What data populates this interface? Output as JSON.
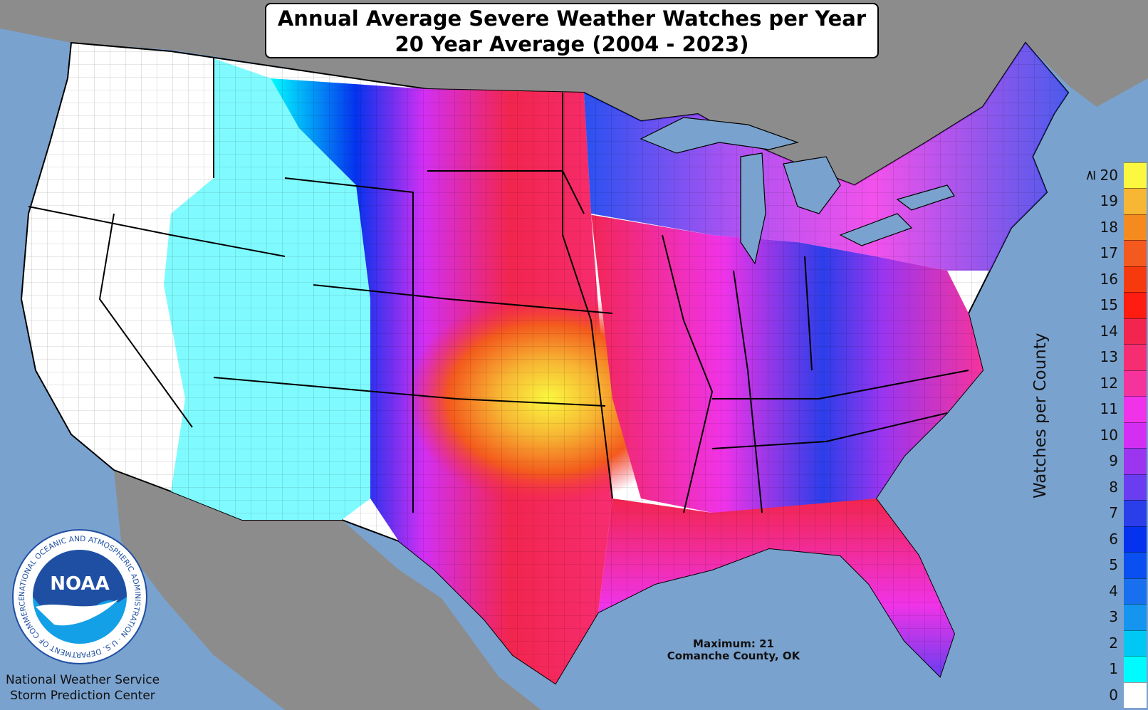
{
  "title": {
    "line1": "Annual Average Severe Weather Watches per Year",
    "line2": "20 Year Average (2004 - 2023)"
  },
  "annotation": {
    "line1": "Maximum: 21",
    "line2": "Comanche County, OK"
  },
  "agency": {
    "line1": "National Weather Service",
    "line2": "Storm Prediction Center"
  },
  "logo": {
    "text": "NOAA",
    "ring_text": "NATIONAL OCEANIC AND ATMOSPHERIC ADMINISTRATION · U.S. DEPARTMENT OF COMMERCE"
  },
  "legend": {
    "title": "Watches per County",
    "ge_symbol": "≥",
    "levels": [
      {
        "label": "0",
        "color": "#ffffff"
      },
      {
        "label": "1",
        "color": "#00fbff"
      },
      {
        "label": "2",
        "color": "#00c8f5"
      },
      {
        "label": "3",
        "color": "#1595f0"
      },
      {
        "label": "4",
        "color": "#1870ef"
      },
      {
        "label": "5",
        "color": "#0a4ff0"
      },
      {
        "label": "6",
        "color": "#0532ee"
      },
      {
        "label": "7",
        "color": "#2b3ee9"
      },
      {
        "label": "8",
        "color": "#6a3ef0"
      },
      {
        "label": "9",
        "color": "#9b35f0"
      },
      {
        "label": "10",
        "color": "#d32ff3"
      },
      {
        "label": "11",
        "color": "#f033e8"
      },
      {
        "label": "12",
        "color": "#f6339d"
      },
      {
        "label": "13",
        "color": "#f72d72"
      },
      {
        "label": "14",
        "color": "#f2254e"
      },
      {
        "label": "15",
        "color": "#ff1c10"
      },
      {
        "label": "16",
        "color": "#f63a0d"
      },
      {
        "label": "17",
        "color": "#f45a1d"
      },
      {
        "label": "18",
        "color": "#f58a1f"
      },
      {
        "label": "19",
        "color": "#f7b633"
      },
      {
        "label": "20",
        "color": "#fbf83f"
      }
    ]
  },
  "colors": {
    "ocean": "#7aa2cf",
    "land_outside": "#8c8c8c",
    "border": "#000000",
    "logo_blue": "#1f4fa3",
    "logo_light": "#14a0e6"
  }
}
